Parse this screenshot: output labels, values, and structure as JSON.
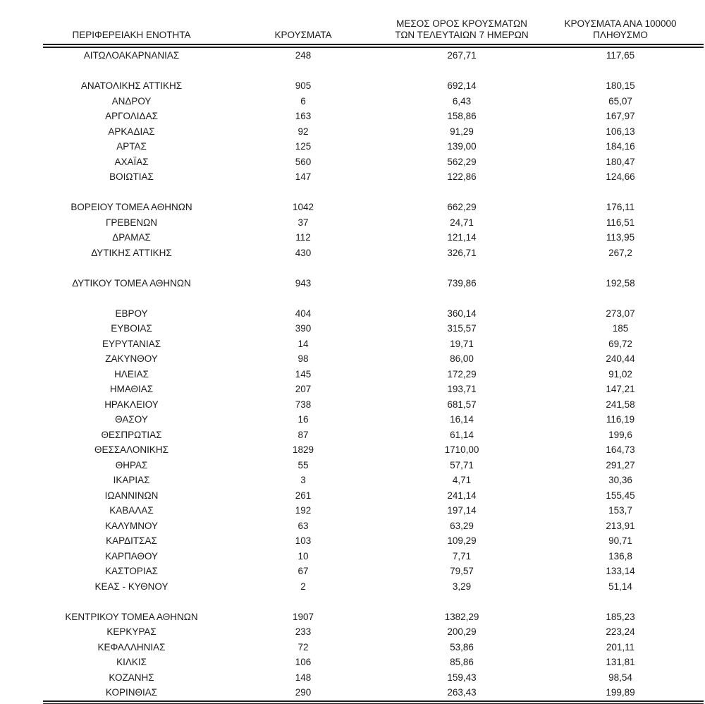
{
  "page": {
    "background_color": "#ffffff",
    "text_color": "#1c1c1c",
    "rule_color": "#1c1c1c"
  },
  "table": {
    "columns": [
      {
        "id": "region",
        "label": "ΠΕΡΙΦΕΡΕΙΑΚΗ ΕΝΟΤΗΤΑ"
      },
      {
        "id": "cases",
        "label": "ΚΡΟΥΣΜΑΤΑ"
      },
      {
        "id": "avg7",
        "label_line1": "ΜΕΣΟΣ ΟΡΟΣ ΚΡΟΥΣΜΑΤΩΝ",
        "label_line2": "ΤΩΝ ΤΕΛΕΥΤΑΙΩΝ 7 ΗΜΕΡΩΝ"
      },
      {
        "id": "per100k",
        "label_line1": "ΚΡΟΥΣΜΑΤΑ ΑΝΑ 100000",
        "label_line2": "ΠΛΗΘΥΣΜΟ"
      }
    ],
    "rows": [
      {
        "region": "ΑΙΤΩΛΟΑΚΑΡΝΑΝΙΑΣ",
        "cases": "248",
        "avg7": "267,71",
        "per100k": "117,65"
      },
      {
        "spacer": true
      },
      {
        "region": "ΑΝΑΤΟΛΙΚΗΣ ΑΤΤΙΚΗΣ",
        "cases": "905",
        "avg7": "692,14",
        "per100k": "180,15"
      },
      {
        "region": "ΑΝΔΡΟΥ",
        "cases": "6",
        "avg7": "6,43",
        "per100k": "65,07"
      },
      {
        "region": "ΑΡΓΟΛΙΔΑΣ",
        "cases": "163",
        "avg7": "158,86",
        "per100k": "167,97"
      },
      {
        "region": "ΑΡΚΑΔΙΑΣ",
        "cases": "92",
        "avg7": "91,29",
        "per100k": "106,13"
      },
      {
        "region": "ΑΡΤΑΣ",
        "cases": "125",
        "avg7": "139,00",
        "per100k": "184,16"
      },
      {
        "region": "ΑΧΑΪΑΣ",
        "cases": "560",
        "avg7": "562,29",
        "per100k": "180,47"
      },
      {
        "region": "ΒΟΙΩΤΙΑΣ",
        "cases": "147",
        "avg7": "122,86",
        "per100k": "124,66"
      },
      {
        "spacer": true
      },
      {
        "region": "ΒΟΡΕΙΟΥ ΤΟΜΕΑ ΑΘΗΝΩΝ",
        "cases": "1042",
        "avg7": "662,29",
        "per100k": "176,11"
      },
      {
        "region": "ΓΡΕΒΕΝΩΝ",
        "cases": "37",
        "avg7": "24,71",
        "per100k": "116,51"
      },
      {
        "region": "ΔΡΑΜΑΣ",
        "cases": "112",
        "avg7": "121,14",
        "per100k": "113,95"
      },
      {
        "region": "ΔΥΤΙΚΗΣ ΑΤΤΙΚΗΣ",
        "cases": "430",
        "avg7": "326,71",
        "per100k": "267,2"
      },
      {
        "spacer": true
      },
      {
        "region": "ΔΥΤΙΚΟΥ ΤΟΜΕΑ ΑΘΗΝΩΝ",
        "cases": "943",
        "avg7": "739,86",
        "per100k": "192,58"
      },
      {
        "spacer": true
      },
      {
        "region": "ΕΒΡΟΥ",
        "cases": "404",
        "avg7": "360,14",
        "per100k": "273,07"
      },
      {
        "region": "ΕΥΒΟΙΑΣ",
        "cases": "390",
        "avg7": "315,57",
        "per100k": "185"
      },
      {
        "region": "ΕΥΡΥΤΑΝΙΑΣ",
        "cases": "14",
        "avg7": "19,71",
        "per100k": "69,72"
      },
      {
        "region": "ΖΑΚΥΝΘΟΥ",
        "cases": "98",
        "avg7": "86,00",
        "per100k": "240,44"
      },
      {
        "region": "ΗΛΕΙΑΣ",
        "cases": "145",
        "avg7": "172,29",
        "per100k": "91,02"
      },
      {
        "region": "ΗΜΑΘΙΑΣ",
        "cases": "207",
        "avg7": "193,71",
        "per100k": "147,21"
      },
      {
        "region": "ΗΡΑΚΛΕΙΟΥ",
        "cases": "738",
        "avg7": "681,57",
        "per100k": "241,58"
      },
      {
        "region": "ΘΑΣΟΥ",
        "cases": "16",
        "avg7": "16,14",
        "per100k": "116,19"
      },
      {
        "region": "ΘΕΣΠΡΩΤΙΑΣ",
        "cases": "87",
        "avg7": "61,14",
        "per100k": "199,6"
      },
      {
        "region": "ΘΕΣΣΑΛΟΝΙΚΗΣ",
        "cases": "1829",
        "avg7": "1710,00",
        "per100k": "164,73"
      },
      {
        "region": "ΘΗΡΑΣ",
        "cases": "55",
        "avg7": "57,71",
        "per100k": "291,27"
      },
      {
        "region": "ΙΚΑΡΙΑΣ",
        "cases": "3",
        "avg7": "4,71",
        "per100k": "30,36"
      },
      {
        "region": "ΙΩΑΝΝΙΝΩΝ",
        "cases": "261",
        "avg7": "241,14",
        "per100k": "155,45"
      },
      {
        "region": "ΚΑΒΑΛΑΣ",
        "cases": "192",
        "avg7": "197,14",
        "per100k": "153,7"
      },
      {
        "region": "ΚΑΛΥΜΝΟΥ",
        "cases": "63",
        "avg7": "63,29",
        "per100k": "213,91"
      },
      {
        "region": "ΚΑΡΔΙΤΣΑΣ",
        "cases": "103",
        "avg7": "109,29",
        "per100k": "90,71"
      },
      {
        "region": "ΚΑΡΠΑΘΟΥ",
        "cases": "10",
        "avg7": "7,71",
        "per100k": "136,8"
      },
      {
        "region": "ΚΑΣΤΟΡΙΑΣ",
        "cases": "67",
        "avg7": "79,57",
        "per100k": "133,14"
      },
      {
        "region": "ΚΕΑΣ - ΚΥΘΝΟΥ",
        "cases": "2",
        "avg7": "3,29",
        "per100k": "51,14"
      },
      {
        "spacer": true
      },
      {
        "region": "ΚΕΝΤΡΙΚΟΥ ΤΟΜΕΑ ΑΘΗΝΩΝ",
        "cases": "1907",
        "avg7": "1382,29",
        "per100k": "185,23"
      },
      {
        "region": "ΚΕΡΚΥΡΑΣ",
        "cases": "233",
        "avg7": "200,29",
        "per100k": "223,24"
      },
      {
        "region": "ΚΕΦΑΛΛΗΝΙΑΣ",
        "cases": "72",
        "avg7": "53,86",
        "per100k": "201,11"
      },
      {
        "region": "ΚΙΛΚΙΣ",
        "cases": "106",
        "avg7": "85,86",
        "per100k": "131,81"
      },
      {
        "region": "ΚΟΖΑΝΗΣ",
        "cases": "148",
        "avg7": "159,43",
        "per100k": "98,54"
      },
      {
        "region": "ΚΟΡΙΝΘΙΑΣ",
        "cases": "290",
        "avg7": "263,43",
        "per100k": "199,89"
      }
    ]
  }
}
